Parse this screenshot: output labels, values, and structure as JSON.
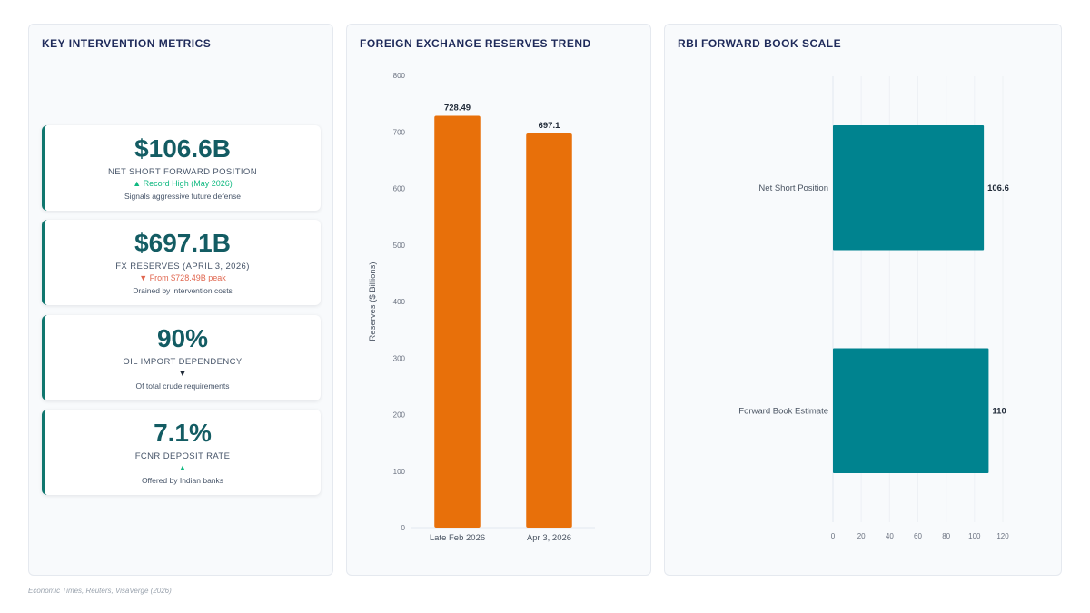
{
  "metrics_panel": {
    "title": "KEY INTERVENTION METRICS",
    "cards": [
      {
        "value": "$106.6B",
        "label": "NET SHORT FORWARD POSITION",
        "trend": "▲ Record High (May 2026)",
        "trend_dir": "up",
        "note": "Signals aggressive future defense"
      },
      {
        "value": "$697.1B",
        "label": "FX RESERVES (APRIL 3, 2026)",
        "trend": "▼ From $728.49B peak",
        "trend_dir": "down",
        "note": "Drained by intervention costs"
      },
      {
        "value": "90%",
        "label": "OIL IMPORT DEPENDENCY",
        "trend": "▼",
        "trend_dir": "neutral",
        "note": "Of total crude requirements"
      },
      {
        "value": "7.1%",
        "label": "FCNR DEPOSIT RATE",
        "trend": "▲",
        "trend_dir": "up",
        "note": "Offered by Indian banks"
      }
    ]
  },
  "chart_data": [
    {
      "type": "bar",
      "title": "FOREIGN EXCHANGE RESERVES TREND",
      "categories": [
        "Late Feb 2026",
        "Apr 3, 2026"
      ],
      "values": [
        728.49,
        697.1
      ],
      "value_labels": [
        "728.49",
        "697.1"
      ],
      "ylabel": "Reserves ($ Billions)",
      "xlabel": "",
      "ylim": [
        0,
        800
      ],
      "yticks": [
        0,
        100,
        200,
        300,
        400,
        500,
        600,
        700,
        800
      ],
      "color": "#e8700a",
      "grid": false
    },
    {
      "type": "bar",
      "orientation": "horizontal",
      "title": "RBI FORWARD BOOK SCALE",
      "categories": [
        "Net Short Position",
        "Forward Book Estimate"
      ],
      "values": [
        106.6,
        110
      ],
      "value_labels": [
        "106.6",
        "110"
      ],
      "xlim": [
        0,
        120
      ],
      "xticks": [
        0,
        20,
        40,
        60,
        80,
        100,
        120
      ],
      "color": "#00838f",
      "grid": true
    }
  ],
  "source": "Economic Times, Reuters, VisaVerge (2026)"
}
